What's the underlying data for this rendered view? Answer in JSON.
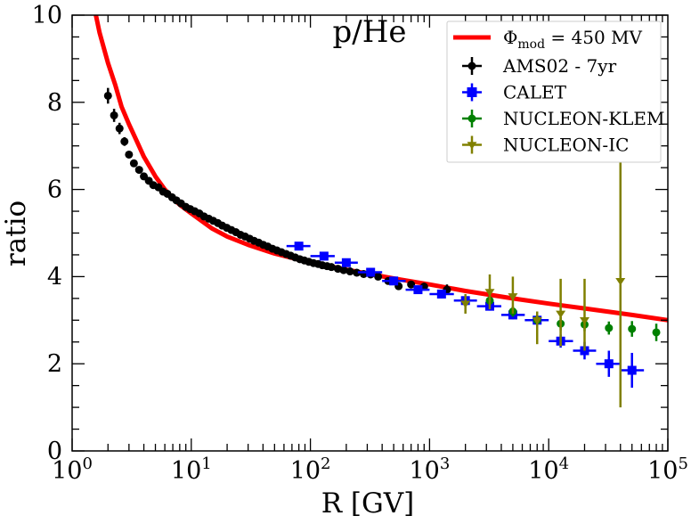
{
  "chart_data": {
    "type": "scatter",
    "title": "p/He",
    "xlabel": "R [GV]",
    "ylabel": "ratio",
    "xscale": "log",
    "xlim": [
      1,
      100000
    ],
    "ylim": [
      0,
      10
    ],
    "x_ticks": [
      {
        "base": "10",
        "exp": "0",
        "value": 1
      },
      {
        "base": "10",
        "exp": "1",
        "value": 10
      },
      {
        "base": "10",
        "exp": "2",
        "value": 100
      },
      {
        "base": "10",
        "exp": "3",
        "value": 1000
      },
      {
        "base": "10",
        "exp": "4",
        "value": 10000
      },
      {
        "base": "10",
        "exp": "5",
        "value": 100000
      }
    ],
    "y_ticks": [
      "0",
      "2",
      "4",
      "6",
      "8",
      "10"
    ],
    "legend_position": "top-right",
    "model": {
      "label_symbol": "Φ",
      "label_sub": "mod",
      "label_rest": " = 450 MV",
      "color": "#ff0000",
      "x": [
        1.5,
        1.7,
        2,
        2.3,
        2.6,
        3,
        3.5,
        4,
        5,
        6,
        7,
        8,
        10,
        15,
        20,
        30,
        50,
        80,
        100,
        200,
        300,
        500,
        1000,
        2000,
        5000,
        10000,
        20000,
        50000,
        100000
      ],
      "y": [
        10.3,
        9.6,
        8.9,
        8.4,
        7.9,
        7.5,
        7.1,
        6.75,
        6.3,
        6.0,
        5.8,
        5.65,
        5.45,
        5.1,
        4.92,
        4.73,
        4.53,
        4.39,
        4.33,
        4.16,
        4.07,
        3.96,
        3.82,
        3.67,
        3.5,
        3.38,
        3.27,
        3.12,
        3.0
      ]
    },
    "series": [
      {
        "name": "AMS02 - 7yr",
        "color": "#000000",
        "marker": "circle",
        "x": [
          2.0,
          2.25,
          2.5,
          2.75,
          3.0,
          3.3,
          3.65,
          4.0,
          4.4,
          4.8,
          5.3,
          5.8,
          6.3,
          6.9,
          7.5,
          8.2,
          9.0,
          9.8,
          10.7,
          11.7,
          12.8,
          14.0,
          15.3,
          16.7,
          18.2,
          19.9,
          21.7,
          23.7,
          25.9,
          28.3,
          30.9,
          33.7,
          36.8,
          40.2,
          43.9,
          48.0,
          52.4,
          57.2,
          62.5,
          68.3,
          74.6,
          81.5,
          89,
          97,
          106,
          116,
          126,
          138,
          150,
          170,
          190,
          215,
          245,
          280,
          320,
          370,
          450,
          550,
          700,
          900,
          1400
        ],
        "y": [
          8.15,
          7.7,
          7.4,
          7.1,
          6.8,
          6.6,
          6.45,
          6.3,
          6.2,
          6.1,
          6.05,
          5.95,
          5.9,
          5.82,
          5.75,
          5.68,
          5.6,
          5.55,
          5.5,
          5.45,
          5.38,
          5.33,
          5.28,
          5.23,
          5.17,
          5.12,
          5.07,
          5.02,
          4.96,
          4.92,
          4.87,
          4.82,
          4.78,
          4.73,
          4.69,
          4.64,
          4.6,
          4.56,
          4.52,
          4.48,
          4.44,
          4.4,
          4.37,
          4.34,
          4.31,
          4.29,
          4.26,
          4.24,
          4.22,
          4.18,
          4.15,
          4.12,
          4.09,
          4.06,
          4.05,
          4.0,
          3.9,
          3.78,
          3.82,
          3.77,
          3.7
        ],
        "yerr": [
          0.18,
          0.15,
          0.13,
          0.1,
          0.08,
          0.06,
          0.05,
          0.05,
          0.04,
          0.04,
          0.04,
          0.04,
          0.04,
          0.03,
          0.03,
          0.03,
          0.03,
          0.03,
          0.03,
          0.03,
          0.03,
          0.03,
          0.03,
          0.03,
          0.03,
          0.03,
          0.03,
          0.03,
          0.03,
          0.03,
          0.03,
          0.03,
          0.03,
          0.03,
          0.03,
          0.03,
          0.03,
          0.03,
          0.03,
          0.03,
          0.03,
          0.03,
          0.03,
          0.04,
          0.04,
          0.04,
          0.04,
          0.04,
          0.04,
          0.05,
          0.05,
          0.05,
          0.05,
          0.06,
          0.06,
          0.07,
          0.07,
          0.08,
          0.08,
          0.09,
          0.12
        ]
      },
      {
        "name": "CALET",
        "color": "#0000ff",
        "marker": "square",
        "x": [
          80,
          130,
          200,
          320,
          500,
          800,
          1260,
          2000,
          3200,
          5000,
          8000,
          12600,
          20000,
          32000,
          50000
        ],
        "xlo": [
          63,
          100,
          160,
          250,
          400,
          630,
          1000,
          1600,
          2500,
          4000,
          6300,
          10000,
          16000,
          25000,
          40000
        ],
        "xhi": [
          100,
          160,
          250,
          400,
          630,
          1000,
          1600,
          2500,
          4000,
          6300,
          10000,
          16000,
          25000,
          40000,
          63000
        ],
        "y": [
          4.7,
          4.47,
          4.32,
          4.1,
          3.9,
          3.7,
          3.6,
          3.45,
          3.32,
          3.12,
          3.0,
          2.52,
          2.3,
          2.0,
          1.85
        ],
        "yerr": [
          0.08,
          0.08,
          0.08,
          0.08,
          0.08,
          0.08,
          0.1,
          0.1,
          0.1,
          0.1,
          0.12,
          0.15,
          0.2,
          0.3,
          0.4
        ]
      },
      {
        "name": "NUCLEON-KLEM",
        "color": "#008000",
        "marker": "circle",
        "x": [
          3200,
          5000,
          8000,
          12600,
          20000,
          32000,
          50000,
          80000
        ],
        "y": [
          3.45,
          3.2,
          3.0,
          2.92,
          2.9,
          2.82,
          2.8,
          2.72
        ],
        "yerr": [
          0.12,
          0.12,
          0.12,
          0.15,
          0.15,
          0.15,
          0.18,
          0.2
        ]
      },
      {
        "name": "NUCLEON-IC",
        "color": "#808000",
        "marker": "triangle-down",
        "x": [
          2000,
          3200,
          5000,
          8000,
          12600,
          20000,
          40000
        ],
        "y": [
          3.38,
          3.65,
          3.55,
          3.0,
          3.15,
          3.0,
          3.9
        ],
        "ylo": [
          3.15,
          3.25,
          3.15,
          2.45,
          2.4,
          2.3,
          1.0
        ],
        "yhi": [
          3.6,
          4.05,
          4.0,
          3.2,
          3.95,
          3.95,
          6.8
        ]
      }
    ]
  }
}
